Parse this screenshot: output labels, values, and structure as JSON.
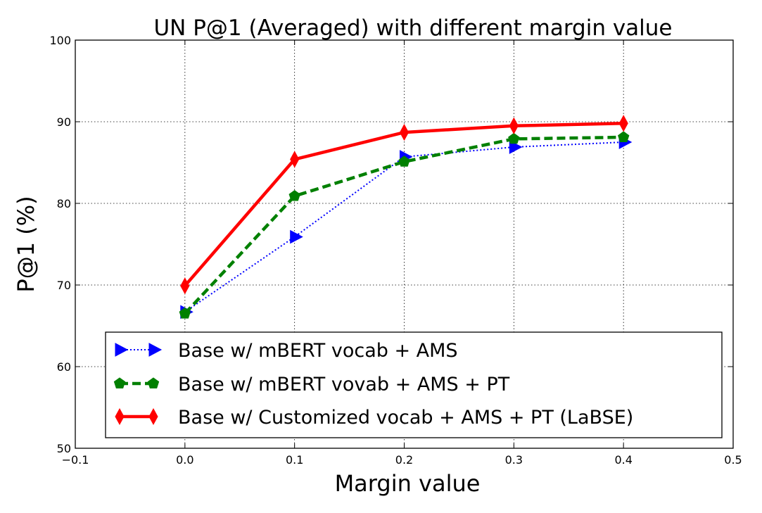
{
  "chart_data": {
    "type": "line",
    "title": "UN P@1 (Averaged) with different margin value",
    "xlabel": "Margin value",
    "ylabel": "P@1 (%)",
    "xlim": [
      -0.1,
      0.5
    ],
    "ylim": [
      50,
      100
    ],
    "xticks": [
      -0.1,
      0.0,
      0.1,
      0.2,
      0.3,
      0.4,
      0.5
    ],
    "xtick_labels": [
      "−0.1",
      "0.0",
      "0.1",
      "0.2",
      "0.3",
      "0.4",
      "0.5"
    ],
    "yticks": [
      50,
      60,
      70,
      80,
      90,
      100
    ],
    "ytick_labels": [
      "50",
      "60",
      "70",
      "80",
      "90",
      "100"
    ],
    "grid": true,
    "legend_position": "lower-right",
    "x": [
      0.0,
      0.1,
      0.2,
      0.3,
      0.4
    ],
    "series": [
      {
        "name": "Base w/ mBERT vocab + AMS",
        "values": [
          66.7,
          75.9,
          85.7,
          86.9,
          87.5
        ],
        "color": "#0000ff",
        "line_style": "dotted",
        "marker": "triangle-right"
      },
      {
        "name": "Base w/ mBERT vovab + AMS +  PT",
        "values": [
          66.5,
          80.9,
          85.1,
          87.9,
          88.1
        ],
        "color": "#008000",
        "line_style": "dashed",
        "marker": "pentagon"
      },
      {
        "name": "Base w/ Customized vocab + AMS + PT (LaBSE)",
        "values": [
          69.9,
          85.4,
          88.7,
          89.5,
          89.8
        ],
        "color": "#ff0000",
        "line_style": "solid",
        "marker": "thin-diamond"
      }
    ]
  }
}
